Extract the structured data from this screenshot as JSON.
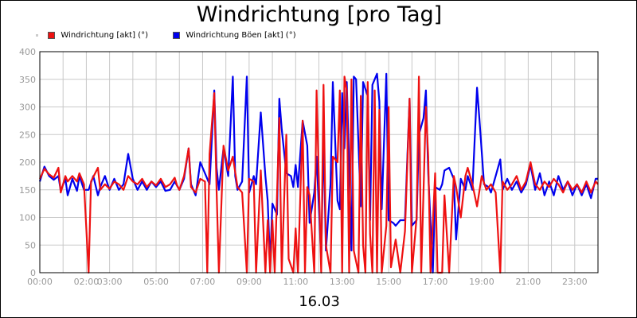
{
  "chart_data": {
    "type": "line",
    "title": "Windrichtung [pro Tag]",
    "xlabel": "16.03",
    "ylabel": "",
    "ylim": [
      0,
      400
    ],
    "yticks": [
      0,
      50,
      100,
      150,
      200,
      250,
      300,
      350,
      400
    ],
    "xlim": [
      0,
      24
    ],
    "xticks": [
      {
        "x": 0,
        "label": "00:00"
      },
      {
        "x": 2,
        "label": "02:00"
      },
      {
        "x": 3,
        "label": "03:00"
      },
      {
        "x": 5,
        "label": "05:00"
      },
      {
        "x": 7,
        "label": "07:00"
      },
      {
        "x": 9,
        "label": "09:00"
      },
      {
        "x": 11,
        "label": "11:00"
      },
      {
        "x": 13,
        "label": "13:00"
      },
      {
        "x": 15,
        "label": "15:00"
      },
      {
        "x": 17,
        "label": "17:00"
      },
      {
        "x": 19,
        "label": "19:00"
      },
      {
        "x": 21,
        "label": "21:00"
      },
      {
        "x": 23,
        "label": "23:00"
      }
    ],
    "grid": true,
    "legend_position": "top-left",
    "series": [
      {
        "name": "Windrichtung [akt] (°)",
        "color": "#ee1111",
        "points": [
          [
            0.0,
            170
          ],
          [
            0.2,
            188
          ],
          [
            0.4,
            178
          ],
          [
            0.6,
            172
          ],
          [
            0.8,
            190
          ],
          [
            0.9,
            145
          ],
          [
            1.1,
            175
          ],
          [
            1.2,
            165
          ],
          [
            1.4,
            175
          ],
          [
            1.6,
            165
          ],
          [
            1.7,
            180
          ],
          [
            1.9,
            160
          ],
          [
            2.1,
            0
          ],
          [
            2.2,
            165
          ],
          [
            2.5,
            190
          ],
          [
            2.6,
            150
          ],
          [
            2.8,
            160
          ],
          [
            3.0,
            152
          ],
          [
            3.2,
            165
          ],
          [
            3.4,
            160
          ],
          [
            3.6,
            150
          ],
          [
            3.8,
            175
          ],
          [
            4.0,
            165
          ],
          [
            4.2,
            160
          ],
          [
            4.4,
            170
          ],
          [
            4.6,
            155
          ],
          [
            4.8,
            165
          ],
          [
            5.0,
            158
          ],
          [
            5.2,
            170
          ],
          [
            5.4,
            155
          ],
          [
            5.6,
            160
          ],
          [
            5.8,
            172
          ],
          [
            5.9,
            158
          ],
          [
            6.0,
            150
          ],
          [
            6.2,
            175
          ],
          [
            6.4,
            225
          ],
          [
            6.5,
            155
          ],
          [
            6.7,
            145
          ],
          [
            6.9,
            170
          ],
          [
            7.1,
            165
          ],
          [
            7.2,
            0
          ],
          [
            7.3,
            215
          ],
          [
            7.5,
            325
          ],
          [
            7.6,
            150
          ],
          [
            7.7,
            0
          ],
          [
            7.9,
            230
          ],
          [
            8.1,
            185
          ],
          [
            8.3,
            210
          ],
          [
            8.5,
            155
          ],
          [
            8.7,
            145
          ],
          [
            8.9,
            0
          ],
          [
            9.0,
            170
          ],
          [
            9.2,
            165
          ],
          [
            9.3,
            0
          ],
          [
            9.5,
            185
          ],
          [
            9.7,
            0
          ],
          [
            9.8,
            95
          ],
          [
            9.9,
            0
          ],
          [
            10.0,
            95
          ],
          [
            10.1,
            0
          ],
          [
            10.3,
            280
          ],
          [
            10.4,
            0
          ],
          [
            10.6,
            250
          ],
          [
            10.7,
            25
          ],
          [
            10.9,
            0
          ],
          [
            11.0,
            80
          ],
          [
            11.1,
            0
          ],
          [
            11.3,
            275
          ],
          [
            11.4,
            0
          ],
          [
            11.5,
            155
          ],
          [
            11.6,
            140
          ],
          [
            11.8,
            0
          ],
          [
            11.9,
            330
          ],
          [
            12.1,
            0
          ],
          [
            12.2,
            340
          ],
          [
            12.3,
            50
          ],
          [
            12.5,
            0
          ],
          [
            12.6,
            210
          ],
          [
            12.8,
            200
          ],
          [
            12.9,
            330
          ],
          [
            13.0,
            0
          ],
          [
            13.1,
            355
          ],
          [
            13.2,
            330
          ],
          [
            13.3,
            0
          ],
          [
            13.4,
            350
          ],
          [
            13.5,
            40
          ],
          [
            13.7,
            0
          ],
          [
            13.8,
            320
          ],
          [
            13.9,
            50
          ],
          [
            14.0,
            0
          ],
          [
            14.1,
            345
          ],
          [
            14.2,
            70
          ],
          [
            14.3,
            0
          ],
          [
            14.4,
            330
          ],
          [
            14.5,
            0
          ],
          [
            14.6,
            295
          ],
          [
            14.7,
            0
          ],
          [
            14.9,
            85
          ],
          [
            15.0,
            300
          ],
          [
            15.1,
            10
          ],
          [
            15.3,
            60
          ],
          [
            15.5,
            0
          ],
          [
            15.7,
            75
          ],
          [
            15.9,
            315
          ],
          [
            16.0,
            0
          ],
          [
            16.2,
            100
          ],
          [
            16.3,
            355
          ],
          [
            16.4,
            0
          ],
          [
            16.6,
            300
          ],
          [
            16.7,
            210
          ],
          [
            16.8,
            0
          ],
          [
            17.0,
            180
          ],
          [
            17.1,
            0
          ],
          [
            17.3,
            0
          ],
          [
            17.4,
            140
          ],
          [
            17.6,
            0
          ],
          [
            17.8,
            175
          ],
          [
            17.9,
            155
          ],
          [
            18.1,
            100
          ],
          [
            18.3,
            175
          ],
          [
            18.4,
            190
          ],
          [
            18.6,
            160
          ],
          [
            18.8,
            120
          ],
          [
            19.0,
            175
          ],
          [
            19.2,
            150
          ],
          [
            19.4,
            160
          ],
          [
            19.6,
            145
          ],
          [
            19.8,
            0
          ],
          [
            19.9,
            165
          ],
          [
            20.1,
            150
          ],
          [
            20.3,
            160
          ],
          [
            20.5,
            175
          ],
          [
            20.7,
            150
          ],
          [
            20.9,
            165
          ],
          [
            21.1,
            200
          ],
          [
            21.3,
            160
          ],
          [
            21.5,
            150
          ],
          [
            21.7,
            165
          ],
          [
            21.9,
            155
          ],
          [
            22.1,
            170
          ],
          [
            22.3,
            160
          ],
          [
            22.5,
            145
          ],
          [
            22.7,
            165
          ],
          [
            22.9,
            150
          ],
          [
            23.1,
            160
          ],
          [
            23.3,
            145
          ],
          [
            23.5,
            165
          ],
          [
            23.7,
            145
          ],
          [
            23.9,
            165
          ],
          [
            24.0,
            160
          ]
        ]
      },
      {
        "name": "Windrichtung Böen [akt] (°)",
        "color": "#0000ee",
        "points": [
          [
            0.0,
            165
          ],
          [
            0.2,
            192
          ],
          [
            0.4,
            175
          ],
          [
            0.6,
            168
          ],
          [
            0.8,
            175
          ],
          [
            0.9,
            148
          ],
          [
            1.1,
            170
          ],
          [
            1.2,
            140
          ],
          [
            1.4,
            170
          ],
          [
            1.6,
            148
          ],
          [
            1.7,
            175
          ],
          [
            1.9,
            150
          ],
          [
            2.1,
            150
          ],
          [
            2.3,
            175
          ],
          [
            2.5,
            140
          ],
          [
            2.6,
            155
          ],
          [
            2.8,
            175
          ],
          [
            3.0,
            150
          ],
          [
            3.2,
            170
          ],
          [
            3.4,
            150
          ],
          [
            3.6,
            160
          ],
          [
            3.8,
            215
          ],
          [
            4.0,
            170
          ],
          [
            4.2,
            150
          ],
          [
            4.4,
            165
          ],
          [
            4.6,
            150
          ],
          [
            4.8,
            165
          ],
          [
            5.0,
            155
          ],
          [
            5.2,
            165
          ],
          [
            5.4,
            148
          ],
          [
            5.6,
            150
          ],
          [
            5.8,
            165
          ],
          [
            6.0,
            150
          ],
          [
            6.2,
            170
          ],
          [
            6.4,
            225
          ],
          [
            6.5,
            160
          ],
          [
            6.7,
            140
          ],
          [
            6.9,
            200
          ],
          [
            7.1,
            180
          ],
          [
            7.3,
            160
          ],
          [
            7.5,
            330
          ],
          [
            7.6,
            190
          ],
          [
            7.7,
            150
          ],
          [
            7.9,
            225
          ],
          [
            8.1,
            175
          ],
          [
            8.3,
            355
          ],
          [
            8.4,
            175
          ],
          [
            8.5,
            150
          ],
          [
            8.7,
            165
          ],
          [
            8.9,
            355
          ],
          [
            9.0,
            145
          ],
          [
            9.2,
            175
          ],
          [
            9.3,
            160
          ],
          [
            9.5,
            290
          ],
          [
            9.7,
            175
          ],
          [
            9.8,
            130
          ],
          [
            9.9,
            15
          ],
          [
            10.0,
            125
          ],
          [
            10.2,
            105
          ],
          [
            10.3,
            315
          ],
          [
            10.4,
            260
          ],
          [
            10.6,
            180
          ],
          [
            10.8,
            175
          ],
          [
            10.9,
            155
          ],
          [
            11.0,
            195
          ],
          [
            11.1,
            155
          ],
          [
            11.3,
            275
          ],
          [
            11.5,
            230
          ],
          [
            11.6,
            90
          ],
          [
            11.8,
            145
          ],
          [
            11.9,
            210
          ],
          [
            12.1,
            25
          ],
          [
            12.2,
            250
          ],
          [
            12.3,
            40
          ],
          [
            12.5,
            160
          ],
          [
            12.6,
            345
          ],
          [
            12.8,
            130
          ],
          [
            12.9,
            115
          ],
          [
            13.0,
            325
          ],
          [
            13.1,
            225
          ],
          [
            13.2,
            345
          ],
          [
            13.4,
            40
          ],
          [
            13.5,
            355
          ],
          [
            13.6,
            350
          ],
          [
            13.8,
            120
          ],
          [
            13.9,
            345
          ],
          [
            14.1,
            320
          ],
          [
            14.2,
            95
          ],
          [
            14.3,
            340
          ],
          [
            14.5,
            360
          ],
          [
            14.6,
            310
          ],
          [
            14.7,
            115
          ],
          [
            14.9,
            360
          ],
          [
            15.0,
            95
          ],
          [
            15.2,
            90
          ],
          [
            15.3,
            85
          ],
          [
            15.5,
            95
          ],
          [
            15.7,
            95
          ],
          [
            15.9,
            315
          ],
          [
            16.0,
            85
          ],
          [
            16.2,
            95
          ],
          [
            16.3,
            250
          ],
          [
            16.5,
            280
          ],
          [
            16.6,
            330
          ],
          [
            16.7,
            180
          ],
          [
            16.9,
            0
          ],
          [
            17.0,
            155
          ],
          [
            17.2,
            150
          ],
          [
            17.3,
            160
          ],
          [
            17.4,
            185
          ],
          [
            17.6,
            190
          ],
          [
            17.8,
            170
          ],
          [
            17.9,
            60
          ],
          [
            18.1,
            170
          ],
          [
            18.3,
            150
          ],
          [
            18.4,
            175
          ],
          [
            18.6,
            150
          ],
          [
            18.8,
            335
          ],
          [
            18.9,
            280
          ],
          [
            19.1,
            160
          ],
          [
            19.3,
            155
          ],
          [
            19.4,
            145
          ],
          [
            19.6,
            175
          ],
          [
            19.8,
            205
          ],
          [
            19.9,
            150
          ],
          [
            20.1,
            170
          ],
          [
            20.3,
            150
          ],
          [
            20.5,
            165
          ],
          [
            20.7,
            145
          ],
          [
            20.9,
            160
          ],
          [
            21.1,
            195
          ],
          [
            21.3,
            150
          ],
          [
            21.5,
            180
          ],
          [
            21.7,
            140
          ],
          [
            21.9,
            165
          ],
          [
            22.1,
            140
          ],
          [
            22.3,
            175
          ],
          [
            22.5,
            150
          ],
          [
            22.7,
            165
          ],
          [
            22.9,
            140
          ],
          [
            23.1,
            160
          ],
          [
            23.3,
            140
          ],
          [
            23.5,
            160
          ],
          [
            23.7,
            135
          ],
          [
            23.9,
            170
          ],
          [
            24.0,
            170
          ]
        ]
      }
    ]
  }
}
